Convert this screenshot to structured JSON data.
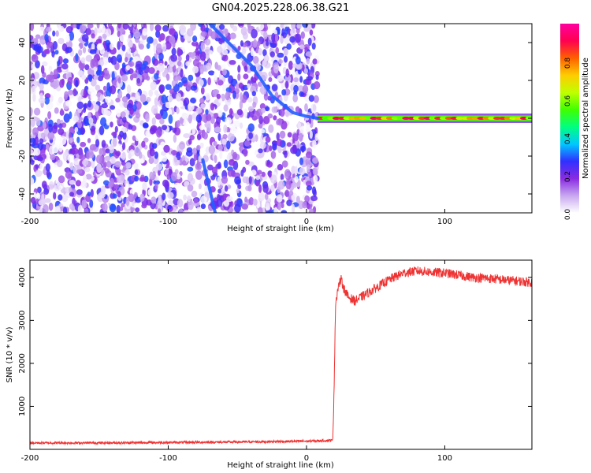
{
  "title": "GN04.2025.228.06.38.G21",
  "chart_data": [
    {
      "type": "heatmap",
      "xlabel": "Height of straight line (km)",
      "ylabel": "Frequency (Hz)",
      "xlim": [
        -200,
        163
      ],
      "ylim": [
        -50,
        50
      ],
      "x_ticks": [
        -200,
        -100,
        0,
        100
      ],
      "y_ticks": [
        -40,
        -20,
        0,
        20,
        40
      ],
      "colorbar": {
        "label": "Normalized spectral amplitude",
        "range": [
          0,
          1
        ],
        "ticks": [
          "0.0",
          "0.2",
          "0.4",
          "0.6",
          "0.8"
        ],
        "colormap": [
          "#ffffff",
          "#c8a8f0",
          "#8a2be2",
          "#3030ff",
          "#00c8ff",
          "#00ff80",
          "#40ff00",
          "#c0ff00",
          "#ffcc00",
          "#ff6000",
          "#ff0050",
          "#ff00a0"
        ]
      },
      "features": {
        "noise_region_x": [
          -200,
          8
        ],
        "signal_line": {
          "x": [
            8,
            163
          ],
          "frequency_hz": 0,
          "amplitude": 0.9
        },
        "upper_sweep": {
          "x": [
            -70,
            -40,
            -25,
            -10,
            0,
            8
          ],
          "frequency_hz": [
            50,
            28,
            12,
            3,
            1,
            0
          ]
        },
        "lower_sweep": {
          "x": [
            -75,
            -66
          ],
          "frequency_hz": [
            -22,
            -50
          ]
        }
      }
    },
    {
      "type": "line",
      "xlabel": "Height of straight line (km)",
      "ylabel": "SNR (10 * v/v)",
      "xlim": [
        -200,
        163
      ],
      "ylim": [
        0,
        4400
      ],
      "x_ticks": [
        -200,
        -100,
        0,
        100
      ],
      "y_ticks": [
        1000,
        2000,
        3000,
        4000
      ],
      "color": "#ee3333",
      "series": [
        {
          "x": [
            -200,
            -150,
            -100,
            -50,
            0,
            10,
            19,
            20,
            21,
            23,
            25,
            27,
            30,
            35,
            40,
            50,
            60,
            70,
            80,
            90,
            100,
            110,
            120,
            130,
            140,
            150,
            163
          ],
          "values": [
            150,
            150,
            160,
            170,
            190,
            200,
            210,
            1500,
            3400,
            3800,
            3950,
            3750,
            3550,
            3450,
            3550,
            3750,
            3950,
            4100,
            4150,
            4120,
            4100,
            4050,
            4000,
            3980,
            3950,
            3920,
            3880
          ]
        }
      ]
    }
  ]
}
